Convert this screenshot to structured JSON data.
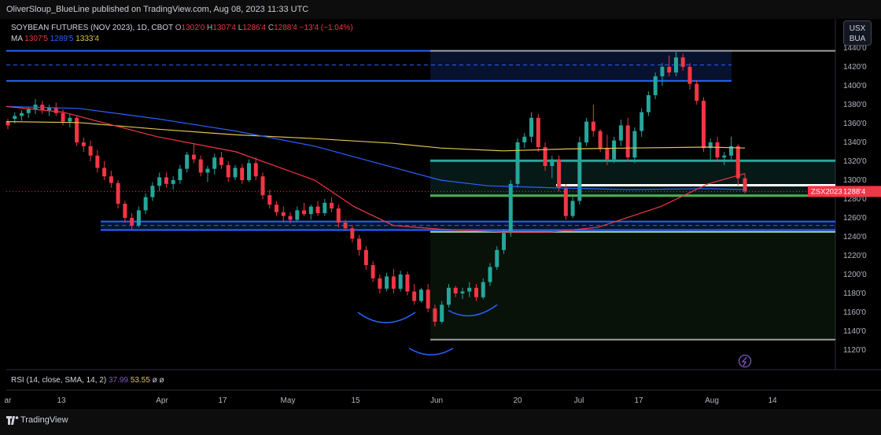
{
  "header": {
    "publish_line": "OliverSloup_BlueLine published on TradingView.com, Aug 08, 2023 11:33 UTC"
  },
  "legend": {
    "symbol": "SOYBEAN FUTURES (NOV 2023), 1D, CBOT",
    "o_label": "O",
    "o_value": "1302'0",
    "h_label": "H",
    "h_value": "1307'4",
    "l_label": "L",
    "l_value": "1286'4",
    "c_label": "C",
    "c_value": "1288'4",
    "change": "−13'4 (−1.04%)",
    "ma_label": "MA",
    "ma1": "1307'5",
    "ma2": "1289'5",
    "ma3": "1333'4"
  },
  "unit": {
    "line1": "USX",
    "line2": "BUA"
  },
  "price_tag": {
    "symbol": "ZSX2023",
    "value": "1288'4"
  },
  "rsi": {
    "label": "RSI (14, close, SMA, 14, 2)",
    "v1": "37.99",
    "v2": "53.55",
    "v3": "ø",
    "v4": "ø"
  },
  "footer": {
    "brand": "TradingView"
  },
  "colors": {
    "up": "#26a69a",
    "down": "#f23645",
    "ma_red": "#f23645",
    "ma_blue": "#2962ff",
    "ma_yellow": "#e0c44d",
    "zone_blue": "#2962ff",
    "zone_green": "#4caf50"
  },
  "chart_data": {
    "type": "candlestick",
    "y_labels": [
      "1440'0",
      "1420'0",
      "1400'0",
      "1380'0",
      "1360'0",
      "1340'0",
      "1320'0",
      "1300'0",
      "1280'0",
      "1260'0",
      "1240'0",
      "1220'0",
      "1200'0",
      "1180'0",
      "1160'0",
      "1140'0",
      "1120'0"
    ],
    "y_values": [
      1440,
      1420,
      1400,
      1380,
      1360,
      1340,
      1320,
      1300,
      1280,
      1260,
      1240,
      1220,
      1200,
      1180,
      1160,
      1140,
      1120
    ],
    "ylim": [
      1115,
      1448
    ],
    "x_labels": [
      "ar",
      "13",
      "Apr",
      "17",
      "May",
      "15",
      "Jun",
      "20",
      "Jul",
      "17",
      "Aug",
      "14"
    ],
    "candles": [
      [
        1362,
        1365,
        1354,
        1358
      ],
      [
        1365,
        1372,
        1360,
        1368
      ],
      [
        1368,
        1374,
        1363,
        1371
      ],
      [
        1371,
        1378,
        1366,
        1375
      ],
      [
        1375,
        1386,
        1370,
        1380
      ],
      [
        1380,
        1384,
        1370,
        1374
      ],
      [
        1374,
        1380,
        1368,
        1377
      ],
      [
        1377,
        1382,
        1368,
        1371
      ],
      [
        1371,
        1375,
        1358,
        1362
      ],
      [
        1362,
        1370,
        1356,
        1366
      ],
      [
        1366,
        1368,
        1336,
        1340
      ],
      [
        1340,
        1345,
        1330,
        1336
      ],
      [
        1336,
        1342,
        1320,
        1326
      ],
      [
        1326,
        1332,
        1308,
        1313
      ],
      [
        1313,
        1320,
        1300,
        1304
      ],
      [
        1304,
        1310,
        1292,
        1297
      ],
      [
        1297,
        1300,
        1270,
        1275
      ],
      [
        1275,
        1278,
        1255,
        1260
      ],
      [
        1260,
        1265,
        1248,
        1252
      ],
      [
        1252,
        1272,
        1250,
        1268
      ],
      [
        1268,
        1286,
        1264,
        1282
      ],
      [
        1282,
        1298,
        1278,
        1294
      ],
      [
        1294,
        1308,
        1288,
        1303
      ],
      [
        1303,
        1308,
        1292,
        1296
      ],
      [
        1296,
        1304,
        1290,
        1300
      ],
      [
        1300,
        1316,
        1296,
        1312
      ],
      [
        1312,
        1330,
        1308,
        1327
      ],
      [
        1327,
        1338,
        1318,
        1322
      ],
      [
        1322,
        1326,
        1304,
        1308
      ],
      [
        1308,
        1315,
        1298,
        1312
      ],
      [
        1312,
        1328,
        1306,
        1324
      ],
      [
        1324,
        1330,
        1312,
        1316
      ],
      [
        1316,
        1320,
        1298,
        1303
      ],
      [
        1303,
        1316,
        1300,
        1313
      ],
      [
        1313,
        1317,
        1296,
        1300
      ],
      [
        1300,
        1322,
        1298,
        1318
      ],
      [
        1318,
        1324,
        1300,
        1304
      ],
      [
        1304,
        1308,
        1280,
        1284
      ],
      [
        1284,
        1290,
        1270,
        1274
      ],
      [
        1274,
        1278,
        1262,
        1266
      ],
      [
        1266,
        1272,
        1255,
        1262
      ],
      [
        1262,
        1266,
        1254,
        1258
      ],
      [
        1258,
        1272,
        1256,
        1268
      ],
      [
        1268,
        1276,
        1262,
        1264
      ],
      [
        1264,
        1274,
        1258,
        1272
      ],
      [
        1272,
        1278,
        1262,
        1265
      ],
      [
        1265,
        1280,
        1262,
        1276
      ],
      [
        1276,
        1282,
        1266,
        1270
      ],
      [
        1270,
        1274,
        1250,
        1255
      ],
      [
        1255,
        1258,
        1246,
        1249
      ],
      [
        1249,
        1252,
        1234,
        1238
      ],
      [
        1238,
        1242,
        1220,
        1226
      ],
      [
        1226,
        1230,
        1205,
        1210
      ],
      [
        1210,
        1214,
        1192,
        1196
      ],
      [
        1196,
        1200,
        1180,
        1185
      ],
      [
        1185,
        1202,
        1182,
        1198
      ],
      [
        1198,
        1206,
        1180,
        1185
      ],
      [
        1185,
        1204,
        1182,
        1200
      ],
      [
        1200,
        1203,
        1178,
        1182
      ],
      [
        1182,
        1190,
        1168,
        1172
      ],
      [
        1172,
        1186,
        1170,
        1184
      ],
      [
        1184,
        1190,
        1160,
        1164
      ],
      [
        1164,
        1168,
        1145,
        1150
      ],
      [
        1150,
        1172,
        1148,
        1168
      ],
      [
        1168,
        1190,
        1165,
        1186
      ],
      [
        1186,
        1188,
        1176,
        1180
      ],
      [
        1180,
        1186,
        1174,
        1182
      ],
      [
        1182,
        1192,
        1176,
        1186
      ],
      [
        1186,
        1190,
        1172,
        1176
      ],
      [
        1176,
        1196,
        1174,
        1192
      ],
      [
        1192,
        1212,
        1188,
        1208
      ],
      [
        1208,
        1230,
        1205,
        1226
      ],
      [
        1226,
        1248,
        1222,
        1244
      ],
      [
        1244,
        1300,
        1240,
        1296
      ],
      [
        1296,
        1344,
        1292,
        1340
      ],
      [
        1340,
        1350,
        1334,
        1346
      ],
      [
        1346,
        1372,
        1340,
        1366
      ],
      [
        1366,
        1370,
        1330,
        1335
      ],
      [
        1335,
        1340,
        1310,
        1315
      ],
      [
        1315,
        1326,
        1302,
        1322
      ],
      [
        1322,
        1326,
        1288,
        1292
      ],
      [
        1292,
        1296,
        1258,
        1262
      ],
      [
        1262,
        1282,
        1260,
        1278
      ],
      [
        1278,
        1346,
        1274,
        1340
      ],
      [
        1340,
        1366,
        1336,
        1362
      ],
      [
        1362,
        1380,
        1346,
        1352
      ],
      [
        1352,
        1354,
        1330,
        1334
      ],
      [
        1334,
        1348,
        1316,
        1322
      ],
      [
        1322,
        1346,
        1318,
        1342
      ],
      [
        1342,
        1364,
        1336,
        1358
      ],
      [
        1358,
        1366,
        1320,
        1324
      ],
      [
        1324,
        1356,
        1318,
        1352
      ],
      [
        1352,
        1376,
        1346,
        1372
      ],
      [
        1372,
        1394,
        1368,
        1390
      ],
      [
        1390,
        1414,
        1386,
        1410
      ],
      [
        1410,
        1424,
        1400,
        1420
      ],
      [
        1420,
        1432,
        1410,
        1414
      ],
      [
        1414,
        1436,
        1410,
        1430
      ],
      [
        1430,
        1434,
        1416,
        1420
      ],
      [
        1420,
        1424,
        1396,
        1402
      ],
      [
        1402,
        1406,
        1380,
        1384
      ],
      [
        1384,
        1388,
        1330,
        1334
      ],
      [
        1334,
        1344,
        1322,
        1340
      ],
      [
        1340,
        1346,
        1320,
        1324
      ],
      [
        1324,
        1330,
        1316,
        1326
      ],
      [
        1326,
        1346,
        1322,
        1336
      ],
      [
        1336,
        1338,
        1294,
        1302
      ],
      [
        1302,
        1307,
        1286,
        1288
      ]
    ]
  }
}
